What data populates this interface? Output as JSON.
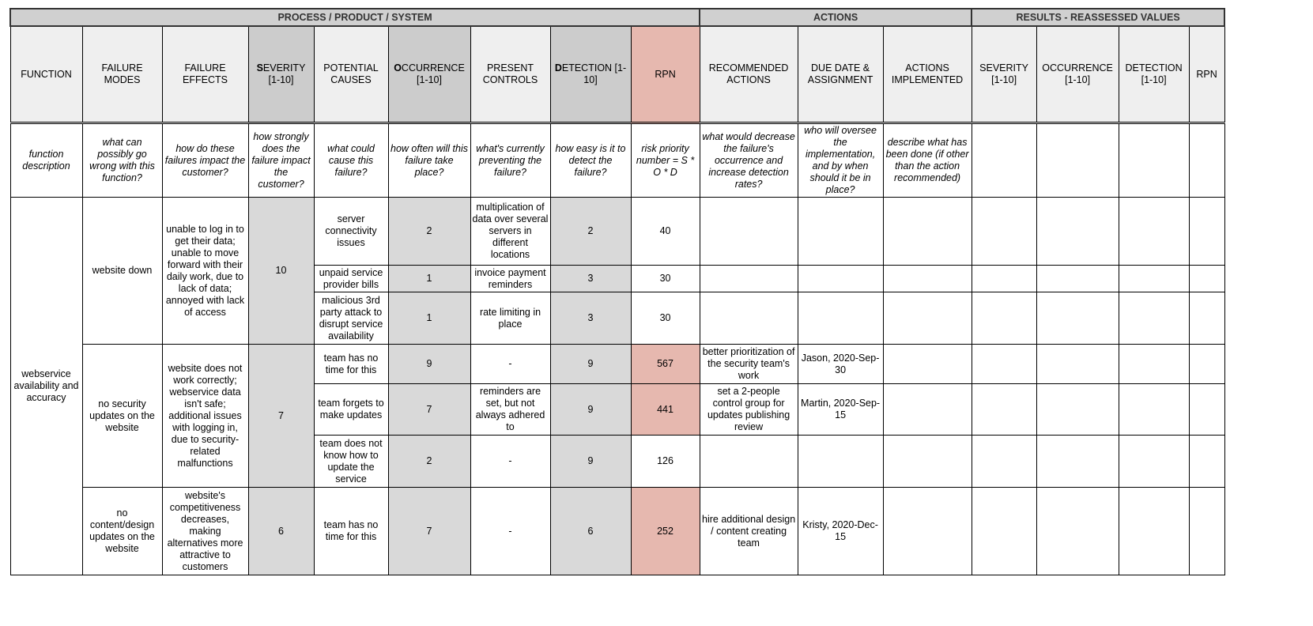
{
  "groups": [
    {
      "label": "PROCESS / PRODUCT / SYSTEM",
      "span": 9
    },
    {
      "label": "ACTIONS",
      "span": 3
    },
    {
      "label": "RESULTS - REASSESSED VALUES",
      "span": 4
    }
  ],
  "columns": [
    {
      "key": "function",
      "label": "FUNCTION",
      "desc": "function description"
    },
    {
      "key": "modes",
      "label": "FAILURE MODES",
      "desc": "what can possibly go wrong with this function?"
    },
    {
      "key": "effects",
      "label": "FAILURE EFFECTS",
      "desc": "how do these failures impact the customer?"
    },
    {
      "key": "severity",
      "lead": "S",
      "label": "EVERITY [1-10]",
      "desc": "how strongly does the failure impact the customer?",
      "style": "dark"
    },
    {
      "key": "causes",
      "label": "POTENTIAL CAUSES",
      "desc": "what could cause this failure?"
    },
    {
      "key": "occurrence",
      "lead": "O",
      "label": "CCURRENCE [1-10]",
      "desc": "how often will this failure take place?",
      "style": "dark"
    },
    {
      "key": "controls",
      "label": "PRESENT CONTROLS",
      "desc": "what's currently preventing the failure?"
    },
    {
      "key": "detection",
      "lead": "D",
      "label": "ETECTION [1-10]",
      "desc": "how easy is it to detect the failure?",
      "style": "dark"
    },
    {
      "key": "rpn",
      "label": "RPN",
      "desc": "risk priority number = S * O * D",
      "style": "rpn"
    },
    {
      "key": "actions",
      "label": "RECOMMENDED ACTIONS",
      "desc": "what would decrease the failure's occurrence and increase detection rates?"
    },
    {
      "key": "due",
      "label": "DUE DATE & ASSIGNMENT",
      "desc": "who will oversee the implementation, and by when should it be in place?"
    },
    {
      "key": "implemented",
      "label": "ACTIONS IMPLEMENTED",
      "desc": "describe what has been done (if other than the action recommended)"
    },
    {
      "key": "r_sev",
      "label": "SEVERITY [1-10]",
      "desc": ""
    },
    {
      "key": "r_occ",
      "label": "OCCURRENCE [1-10]",
      "desc": ""
    },
    {
      "key": "r_det",
      "label": "DETECTION [1-10]",
      "desc": ""
    },
    {
      "key": "r_rpn",
      "label": "RPN",
      "desc": ""
    }
  ],
  "highlight_color": "#e6b8af",
  "functions": [
    {
      "name": "webservice availability and accuracy",
      "modes": [
        {
          "mode": "website down",
          "effects": "unable to log in to get their data; unable to move forward with their daily work, due to lack of data; annoyed with lack of access",
          "severity": "10",
          "causes": [
            {
              "cause": "server connectivity issues",
              "occurrence": "2",
              "controls": "multiplication of data over several servers in different locations",
              "detection": "2",
              "rpn": "40",
              "actions": "",
              "due": "",
              "implemented": "",
              "highlight": false
            },
            {
              "cause": "unpaid service provider bills",
              "occurrence": "1",
              "controls": "invoice payment reminders",
              "detection": "3",
              "rpn": "30",
              "actions": "",
              "due": "",
              "implemented": "",
              "highlight": false
            },
            {
              "cause": "malicious 3rd party attack to disrupt service availability",
              "occurrence": "1",
              "controls": "rate limiting in place",
              "detection": "3",
              "rpn": "30",
              "actions": "",
              "due": "",
              "implemented": "",
              "highlight": false
            }
          ]
        },
        {
          "mode": "no security updates on the website",
          "effects": "website does not work correctly; webservice data isn't safe; additional issues with logging in, due to security-related malfunctions",
          "severity": "7",
          "causes": [
            {
              "cause": "team has no time for this",
              "occurrence": "9",
              "controls": "-",
              "detection": "9",
              "rpn": "567",
              "actions": "better prioritization of the security team's work",
              "due": "Jason, 2020-Sep-30",
              "implemented": "",
              "highlight": true
            },
            {
              "cause": "team forgets to make updates",
              "occurrence": "7",
              "controls": "reminders are set, but not always adhered to",
              "detection": "9",
              "rpn": "441",
              "actions": "set a 2-people control group for updates publishing review",
              "due": "Martin, 2020-Sep-15",
              "implemented": "",
              "highlight": true
            },
            {
              "cause": "team does not know how to update the service",
              "occurrence": "2",
              "controls": "-",
              "detection": "9",
              "rpn": "126",
              "actions": "",
              "due": "",
              "implemented": "",
              "highlight": false
            }
          ]
        },
        {
          "mode": "no content/design updates on the website",
          "effects": "website's competitiveness decreases, making alternatives more attractive to customers",
          "severity": "6",
          "causes": [
            {
              "cause": "team has no time for this",
              "occurrence": "7",
              "controls": "-",
              "detection": "6",
              "rpn": "252",
              "actions": "hire additional design / content creating team",
              "due": "Kristy, 2020-Dec-15",
              "implemented": "",
              "highlight": true
            }
          ]
        }
      ]
    }
  ]
}
